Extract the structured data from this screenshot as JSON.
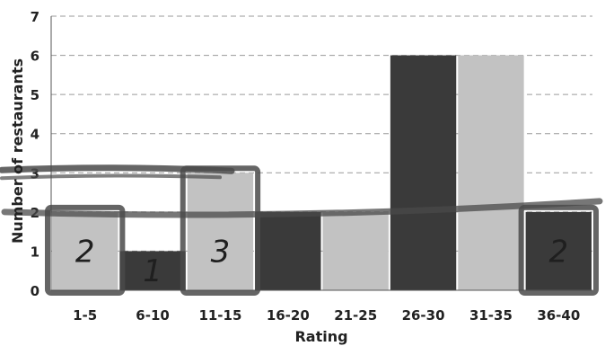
{
  "chart_data": {
    "type": "bar",
    "categories": [
      "1-5",
      "6-10",
      "11-15",
      "16-20",
      "21-25",
      "26-30",
      "31-35",
      "36-40"
    ],
    "values": [
      2,
      1,
      3,
      2,
      2,
      6,
      6,
      2
    ],
    "bar_shades": [
      "#c2c2c2",
      "#3a3a3a",
      "#c2c2c2",
      "#3a3a3a",
      "#c2c2c2",
      "#3a3a3a",
      "#c2c2c2",
      "#3a3a3a"
    ],
    "xlabel": "Rating",
    "ylabel": "Number of restaurants",
    "ylim": [
      0,
      7
    ],
    "yticks": [
      "0",
      "1",
      "2",
      "3",
      "4",
      "5",
      "6",
      "7"
    ],
    "grid": true,
    "annotations": [
      {
        "category": "1-5",
        "text": "2"
      },
      {
        "category": "6-10",
        "text": "1"
      },
      {
        "category": "11-15",
        "text": "3"
      },
      {
        "category": "36-40",
        "text": "2"
      }
    ],
    "highlight_levels": [
      2,
      3
    ],
    "highlight_color": "#4a4a4a"
  }
}
